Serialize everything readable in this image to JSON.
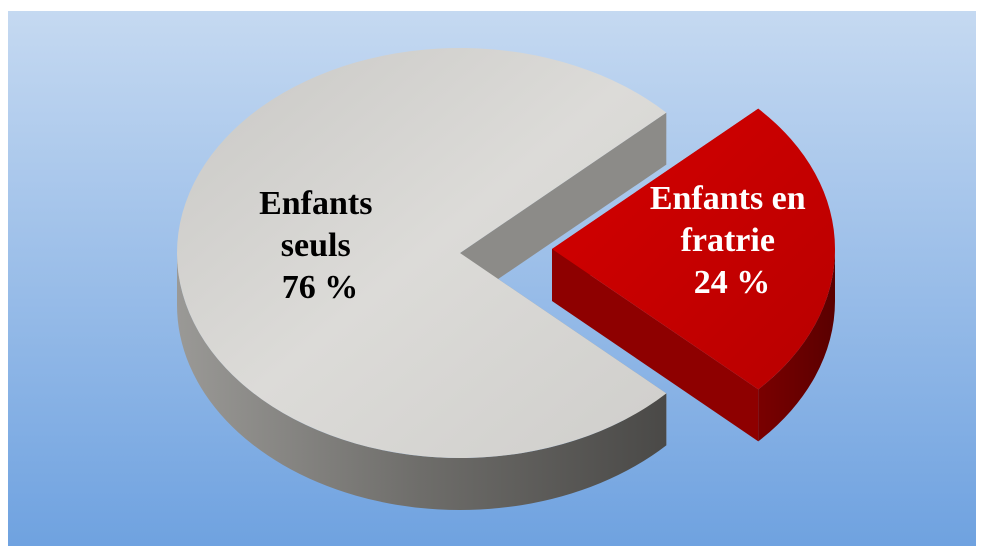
{
  "chart_data": {
    "type": "pie",
    "style": "3d-exploded",
    "title": "",
    "slices": [
      {
        "name": "Enfants seuls",
        "label_lines": [
          "Enfants",
          "seuls",
          "76 %"
        ],
        "value": 76,
        "color": "#d0cfcc",
        "text_color": "#000000"
      },
      {
        "name": "Enfants en fratrie",
        "label_lines": [
          "Enfants en",
          "fratrie",
          "24 %"
        ],
        "value": 24,
        "color": "#c00000",
        "text_color": "#ffffff"
      }
    ],
    "legend": "none",
    "background": {
      "top": "#c5d9f1",
      "bottom": "#6fa2e0"
    }
  }
}
